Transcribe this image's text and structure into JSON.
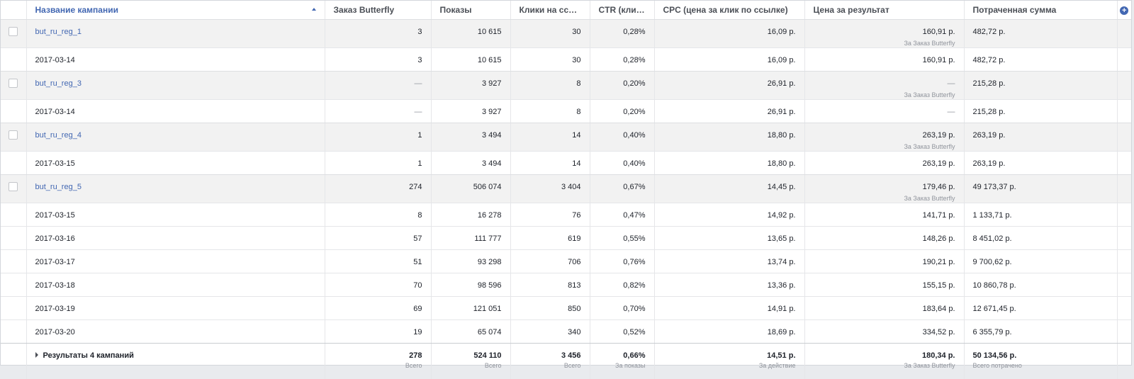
{
  "columns": {
    "name": "Название кампании",
    "conversions": "Заказ Butterfly",
    "impressions": "Показы",
    "link_clicks": "Клики на ссылку",
    "ctr": "CTR (клика...",
    "cpc": "CPC (цена за клик по ссылке)",
    "cost_per_result": "Цена за результат",
    "amount_spent": "Потраченная сумма"
  },
  "icons": {
    "sort": "sort-ascending-icon",
    "add_column": "plus-circle-icon",
    "expand": "triangle-right-icon"
  },
  "colors": {
    "link": "#4267b2",
    "row_group_bg": "#f2f2f2",
    "muted": "#90949c"
  },
  "rows": [
    {
      "type": "campaign",
      "name": "but_ru_reg_1",
      "conversions": "3",
      "impressions": "10 615",
      "link_clicks": "30",
      "ctr": "0,28%",
      "cpc": "16,09 р.",
      "cost_per_result": "160,91 р.",
      "cost_sub": "За Заказ Butterfly",
      "amount_spent": "482,72 р."
    },
    {
      "type": "date",
      "name": "2017-03-14",
      "conversions": "3",
      "impressions": "10 615",
      "link_clicks": "30",
      "ctr": "0,28%",
      "cpc": "16,09 р.",
      "cost_per_result": "160,91 р.",
      "amount_spent": "482,72 р."
    },
    {
      "type": "campaign",
      "name": "but_ru_reg_3",
      "conversions": "—",
      "impressions": "3 927",
      "link_clicks": "8",
      "ctr": "0,20%",
      "cpc": "26,91 р.",
      "cost_per_result": "—",
      "cost_sub": "За Заказ Butterfly",
      "amount_spent": "215,28 р."
    },
    {
      "type": "date",
      "name": "2017-03-14",
      "conversions": "—",
      "impressions": "3 927",
      "link_clicks": "8",
      "ctr": "0,20%",
      "cpc": "26,91 р.",
      "cost_per_result": "—",
      "amount_spent": "215,28 р."
    },
    {
      "type": "campaign",
      "name": "but_ru_reg_4",
      "conversions": "1",
      "impressions": "3 494",
      "link_clicks": "14",
      "ctr": "0,40%",
      "cpc": "18,80 р.",
      "cost_per_result": "263,19 р.",
      "cost_sub": "За Заказ Butterfly",
      "amount_spent": "263,19 р."
    },
    {
      "type": "date",
      "name": "2017-03-15",
      "conversions": "1",
      "impressions": "3 494",
      "link_clicks": "14",
      "ctr": "0,40%",
      "cpc": "18,80 р.",
      "cost_per_result": "263,19 р.",
      "amount_spent": "263,19 р."
    },
    {
      "type": "campaign",
      "name": "but_ru_reg_5",
      "conversions": "274",
      "impressions": "506 074",
      "link_clicks": "3 404",
      "ctr": "0,67%",
      "cpc": "14,45 р.",
      "cost_per_result": "179,46 р.",
      "cost_sub": "За Заказ Butterfly",
      "amount_spent": "49 173,37 р."
    },
    {
      "type": "date",
      "name": "2017-03-15",
      "conversions": "8",
      "impressions": "16 278",
      "link_clicks": "76",
      "ctr": "0,47%",
      "cpc": "14,92 р.",
      "cost_per_result": "141,71 р.",
      "amount_spent": "1 133,71 р."
    },
    {
      "type": "date",
      "name": "2017-03-16",
      "conversions": "57",
      "impressions": "111 777",
      "link_clicks": "619",
      "ctr": "0,55%",
      "cpc": "13,65 р.",
      "cost_per_result": "148,26 р.",
      "amount_spent": "8 451,02 р."
    },
    {
      "type": "date",
      "name": "2017-03-17",
      "conversions": "51",
      "impressions": "93 298",
      "link_clicks": "706",
      "ctr": "0,76%",
      "cpc": "13,74 р.",
      "cost_per_result": "190,21 р.",
      "amount_spent": "9 700,62 р."
    },
    {
      "type": "date",
      "name": "2017-03-18",
      "conversions": "70",
      "impressions": "98 596",
      "link_clicks": "813",
      "ctr": "0,82%",
      "cpc": "13,36 р.",
      "cost_per_result": "155,15 р.",
      "amount_spent": "10 860,78 р."
    },
    {
      "type": "date",
      "name": "2017-03-19",
      "conversions": "69",
      "impressions": "121 051",
      "link_clicks": "850",
      "ctr": "0,70%",
      "cpc": "14,91 р.",
      "cost_per_result": "183,64 р.",
      "amount_spent": "12 671,45 р."
    },
    {
      "type": "date",
      "name": "2017-03-20",
      "conversions": "19",
      "impressions": "65 074",
      "link_clicks": "340",
      "ctr": "0,52%",
      "cpc": "18,69 р.",
      "cost_per_result": "334,52 р.",
      "amount_spent": "6 355,79 р."
    }
  ],
  "totals": {
    "label": "Результаты 4 кампаний",
    "conversions": "278",
    "conversions_sub": "Всего",
    "impressions": "524 110",
    "impressions_sub": "Всего",
    "link_clicks": "3 456",
    "link_clicks_sub": "Всего",
    "ctr": "0,66%",
    "ctr_sub": "За показы",
    "cpc": "14,51 р.",
    "cpc_sub": "За действие",
    "cost_per_result": "180,34 р.",
    "cost_per_result_sub": "За Заказ Butterfly",
    "amount_spent": "50 134,56 р.",
    "amount_spent_sub": "Всего потрачено"
  }
}
